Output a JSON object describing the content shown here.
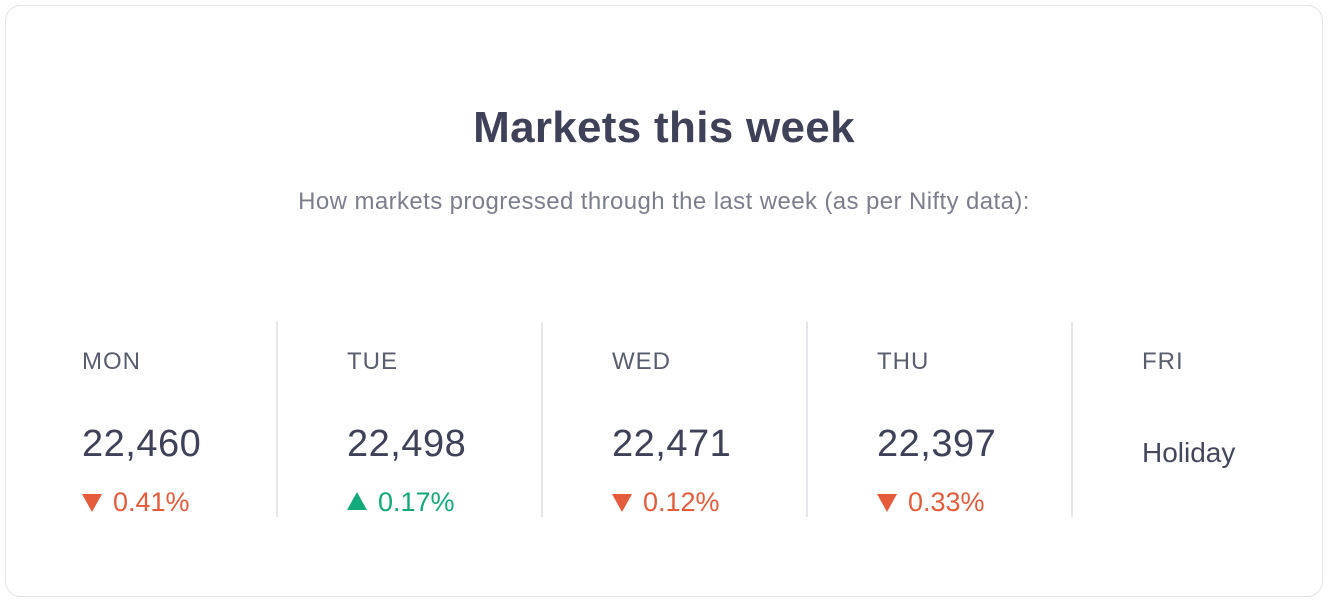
{
  "card": {
    "title": "Markets this week",
    "subtitle": "How markets progressed through the last week (as per Nifty data):"
  },
  "colors": {
    "down": "#e55b3b",
    "up": "#13a97a",
    "text": "#3e4157",
    "muted": "#7c7e8c"
  },
  "days": [
    {
      "name": "MON",
      "value": "22,460",
      "change": "0.41%",
      "direction": "down",
      "icon": "triangle-down-icon"
    },
    {
      "name": "TUE",
      "value": "22,498",
      "change": "0.17%",
      "direction": "up",
      "icon": "triangle-up-icon"
    },
    {
      "name": "WED",
      "value": "22,471",
      "change": "0.12%",
      "direction": "down",
      "icon": "triangle-down-icon"
    },
    {
      "name": "THU",
      "value": "22,397",
      "change": "0.33%",
      "direction": "down",
      "icon": "triangle-down-icon"
    },
    {
      "name": "FRI",
      "status": "Holiday"
    }
  ]
}
